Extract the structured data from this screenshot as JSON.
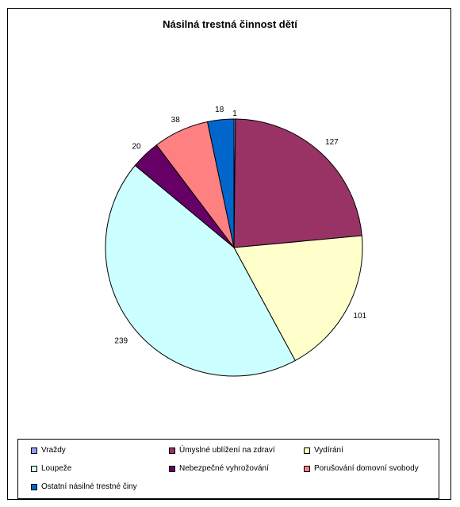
{
  "chart_data": {
    "type": "pie",
    "title": "Násilná trestná činnost dětí",
    "categories": [
      "Vraždy",
      "Úmyslné ublížení na zdraví",
      "Vydírání",
      "Loupeže",
      "Nebezpečné vyhrožování",
      "Porušování domovní svobody",
      "Ostatní násilné trestné činy"
    ],
    "values": [
      1,
      127,
      101,
      239,
      20,
      38,
      18
    ],
    "colors": [
      "#9999ff",
      "#993366",
      "#ffffcc",
      "#ccffff",
      "#660066",
      "#ff8080",
      "#0066cc"
    ],
    "legend_position": "bottom",
    "data_labels": true
  }
}
